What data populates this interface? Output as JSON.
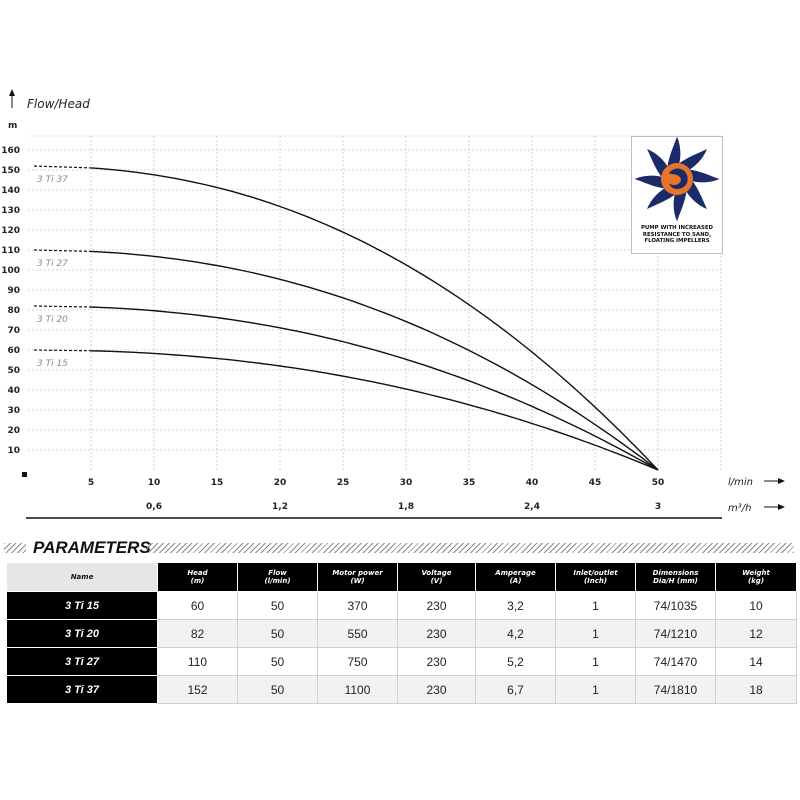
{
  "chart_data": {
    "type": "line",
    "title": "Flow/Head",
    "y_unit": "m",
    "x_unit_primary": "l/min",
    "x_unit_secondary": "m³/h",
    "y_ticks": [
      10,
      20,
      30,
      40,
      50,
      60,
      70,
      80,
      90,
      100,
      110,
      120,
      130,
      140,
      150,
      160
    ],
    "x_ticks": [
      5,
      10,
      15,
      20,
      25,
      30,
      35,
      40,
      45,
      50
    ],
    "x_ticks_secondary": [
      {
        "at": 10,
        "label": "0,6"
      },
      {
        "at": 20,
        "label": "1,2"
      },
      {
        "at": 30,
        "label": "1,8"
      },
      {
        "at": 40,
        "label": "2,4"
      },
      {
        "at": 50,
        "label": "3"
      }
    ],
    "xlim": [
      0,
      55
    ],
    "ylim": [
      0,
      167
    ],
    "grid": true,
    "series": [
      {
        "name": "3 Ti 37",
        "max_head": 152,
        "max_flow": 50
      },
      {
        "name": "3 Ti 27",
        "max_head": 110,
        "max_flow": 50
      },
      {
        "name": "3 Ti 20",
        "max_head": 82,
        "max_flow": 50
      },
      {
        "name": "3 Ti 15",
        "max_head": 60,
        "max_flow": 50
      }
    ]
  },
  "badge": {
    "icon": "impeller-icon",
    "caption": "PUMP WITH INCREASED RESISTANCE TO SAND, FLOATING IMPELLERS",
    "colors": {
      "blades": "#1b2a6b",
      "center": "#e8742a"
    }
  },
  "parameters": {
    "title": "PARAMETERS",
    "columns": [
      {
        "label": "Name",
        "unit": ""
      },
      {
        "label": "Head",
        "unit": "(m)"
      },
      {
        "label": "Flow",
        "unit": "(l/min)"
      },
      {
        "label": "Motor power",
        "unit": "(W)"
      },
      {
        "label": "Voltage",
        "unit": "(V)"
      },
      {
        "label": "Amperage",
        "unit": "(A)"
      },
      {
        "label": "Inlet/outlet",
        "unit": "(Inch)"
      },
      {
        "label": "Dimensions",
        "unit": "Dia/H (mm)"
      },
      {
        "label": "Weight",
        "unit": "(kg)"
      }
    ],
    "rows": [
      [
        "3 Ti 15",
        "60",
        "50",
        "370",
        "230",
        "3,2",
        "1",
        "74/1035",
        "10"
      ],
      [
        "3 Ti 20",
        "82",
        "50",
        "550",
        "230",
        "4,2",
        "1",
        "74/1210",
        "12"
      ],
      [
        "3 Ti 27",
        "110",
        "50",
        "750",
        "230",
        "5,2",
        "1",
        "74/1470",
        "14"
      ],
      [
        "3 Ti 37",
        "152",
        "50",
        "1100",
        "230",
        "6,7",
        "1",
        "74/1810",
        "18"
      ]
    ]
  }
}
